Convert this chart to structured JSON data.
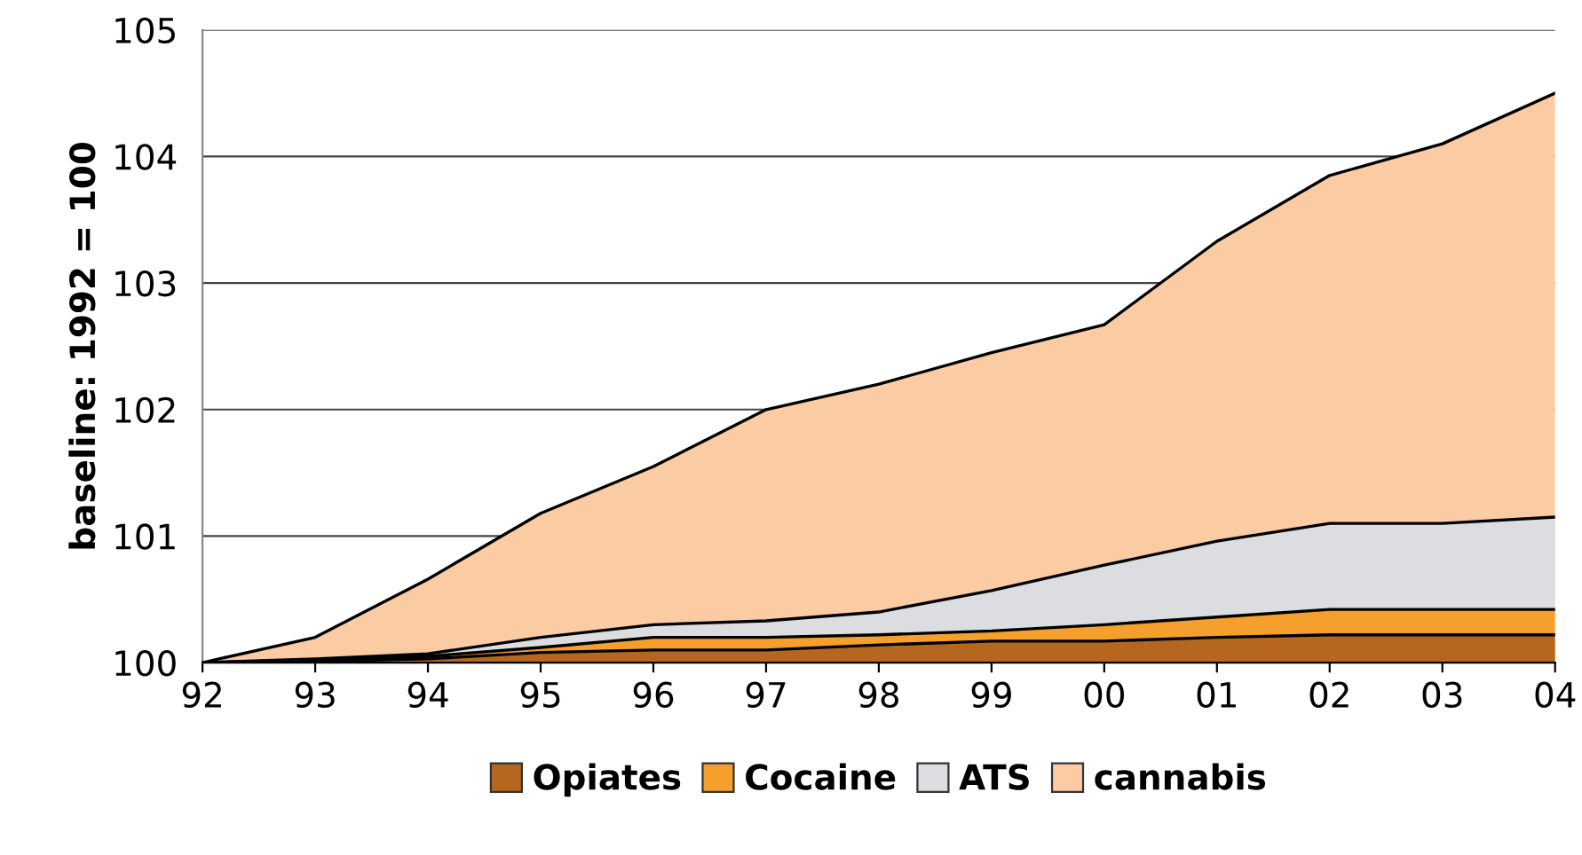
{
  "chart_data": {
    "type": "area",
    "ylabel": "baseline: 1992 = 100",
    "categories": [
      "92",
      "93",
      "94",
      "95",
      "96",
      "97",
      "98",
      "99",
      "00",
      "01",
      "02",
      "03",
      "04"
    ],
    "series": [
      {
        "name": "Opiates",
        "color": "#b5661f",
        "values": [
          100,
          100.01,
          100.03,
          100.08,
          100.1,
          100.1,
          100.14,
          100.17,
          100.17,
          100.2,
          100.22,
          100.22,
          100.22
        ]
      },
      {
        "name": "Cocaine",
        "color": "#f5a02c",
        "values": [
          100,
          100.02,
          100.05,
          100.12,
          100.2,
          100.2,
          100.22,
          100.25,
          100.3,
          100.36,
          100.42,
          100.42,
          100.42
        ]
      },
      {
        "name": "ATS",
        "color": "#dcdde0",
        "values": [
          100,
          100.03,
          100.07,
          100.2,
          100.3,
          100.33,
          100.4,
          100.57,
          100.77,
          100.96,
          101.1,
          101.1,
          101.15
        ]
      },
      {
        "name": "cannabis",
        "color": "#fbcba3",
        "values": [
          100,
          100.2,
          100.66,
          101.18,
          101.55,
          102.0,
          102.2,
          102.45,
          102.67,
          103.33,
          103.85,
          104.1,
          104.5
        ]
      }
    ],
    "ylim": [
      100,
      105
    ],
    "yticks": [
      100,
      101,
      102,
      103,
      104,
      105
    ],
    "grid": "y",
    "legend": "bottom"
  }
}
